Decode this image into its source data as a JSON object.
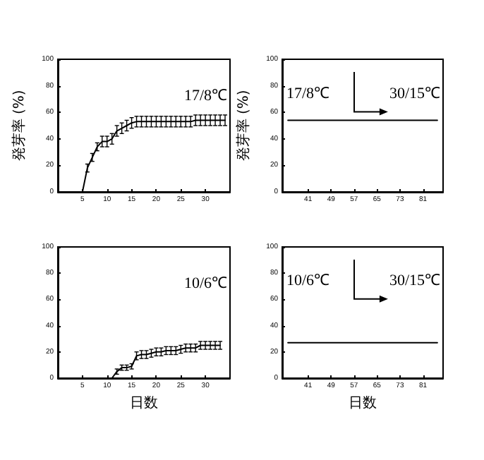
{
  "chart_data": [
    {
      "type": "line",
      "ylabel": "発芽率 (%)",
      "annotations": [
        "17/8℃"
      ],
      "xlim": [
        0,
        35
      ],
      "xticks": [
        5,
        10,
        15,
        20,
        25,
        30
      ],
      "ylim": [
        0,
        100
      ],
      "yticks": [
        0,
        20,
        40,
        60,
        80,
        100
      ],
      "grid": false,
      "x": [
        1,
        2,
        3,
        4,
        5,
        6,
        7,
        8,
        9,
        10,
        11,
        12,
        13,
        14,
        15,
        16,
        17,
        18,
        19,
        20,
        21,
        22,
        23,
        24,
        25,
        26,
        27,
        28,
        29,
        30,
        31,
        32,
        33,
        34
      ],
      "series": [
        {
          "color": "#000000",
          "values": [
            0,
            0,
            0,
            0,
            0,
            18,
            26,
            34,
            38,
            38,
            40,
            46,
            48,
            50,
            52,
            53,
            53,
            53,
            53,
            53,
            53,
            53,
            53,
            53,
            53,
            53,
            53,
            54,
            54,
            54,
            54,
            54,
            54,
            54
          ],
          "errors": [
            null,
            null,
            null,
            null,
            null,
            3,
            3,
            3,
            4,
            4,
            4,
            4,
            4,
            4,
            4,
            4,
            4,
            4,
            4,
            4,
            4,
            4,
            4,
            4,
            4,
            4,
            4,
            4,
            4,
            4,
            4,
            4,
            4,
            4
          ]
        }
      ]
    },
    {
      "type": "line",
      "ylabel": "発芽率 (%)",
      "annotations": [
        "17/8℃",
        "30/15℃"
      ],
      "xlim": [
        32,
        88
      ],
      "xticks": [
        41,
        49,
        57,
        65,
        73,
        81
      ],
      "ylim": [
        0,
        100
      ],
      "yticks": [
        0,
        20,
        40,
        60,
        80,
        100
      ],
      "grid": false,
      "x": [
        34,
        36,
        38,
        40,
        42,
        44,
        46,
        48,
        50,
        52,
        54,
        56,
        58,
        60,
        62,
        64,
        66,
        68,
        70,
        72,
        74,
        76,
        78,
        80,
        82,
        84,
        86
      ],
      "series": [
        {
          "color": "#000000",
          "values": [
            54,
            54,
            54,
            54,
            54,
            54,
            54,
            54,
            54,
            54,
            54,
            54,
            54,
            54,
            54,
            54,
            54,
            54,
            54,
            54,
            54,
            54,
            54,
            54,
            54,
            54,
            54
          ]
        }
      ]
    },
    {
      "type": "line",
      "xlabel": "日数",
      "annotations": [
        "10/6℃"
      ],
      "xlim": [
        0,
        35
      ],
      "xticks": [
        5,
        10,
        15,
        20,
        25,
        30
      ],
      "ylim": [
        0,
        100
      ],
      "yticks": [
        0,
        20,
        40,
        60,
        80,
        100
      ],
      "grid": false,
      "x": [
        1,
        2,
        3,
        4,
        5,
        6,
        7,
        8,
        9,
        10,
        11,
        12,
        13,
        14,
        15,
        16,
        17,
        18,
        19,
        20,
        21,
        22,
        23,
        24,
        25,
        26,
        27,
        28,
        29,
        30,
        31,
        32,
        33
      ],
      "series": [
        {
          "color": "#000000",
          "values": [
            0,
            0,
            0,
            0,
            0,
            0,
            0,
            0,
            0,
            0,
            0,
            5,
            8,
            8,
            9,
            17,
            18,
            18,
            19,
            20,
            20,
            21,
            21,
            21,
            22,
            23,
            23,
            23,
            25,
            25,
            25,
            25,
            25
          ],
          "errors": [
            null,
            null,
            null,
            null,
            null,
            null,
            null,
            null,
            null,
            null,
            null,
            2,
            2,
            2,
            2,
            3,
            3,
            3,
            3,
            3,
            3,
            3,
            3,
            3,
            3,
            3,
            3,
            3,
            3,
            3,
            3,
            3,
            3
          ]
        }
      ]
    },
    {
      "type": "line",
      "xlabel": "日数",
      "annotations": [
        "10/6℃",
        "30/15℃"
      ],
      "xlim": [
        32,
        88
      ],
      "xticks": [
        41,
        49,
        57,
        65,
        73,
        81
      ],
      "ylim": [
        0,
        100
      ],
      "yticks": [
        0,
        20,
        40,
        60,
        80,
        100
      ],
      "grid": false,
      "x": [
        34,
        36,
        38,
        40,
        42,
        44,
        46,
        48,
        50,
        52,
        54,
        56,
        58,
        60,
        62,
        64,
        66,
        68,
        70,
        72,
        74,
        76,
        78,
        80,
        82,
        84,
        86
      ],
      "series": [
        {
          "color": "#000000",
          "values": [
            27,
            27,
            27,
            27,
            27,
            27,
            27,
            27,
            27,
            27,
            27,
            27,
            27,
            27,
            27,
            27,
            27,
            27,
            27,
            27,
            27,
            27,
            27,
            27,
            27,
            27,
            27
          ]
        }
      ]
    }
  ]
}
